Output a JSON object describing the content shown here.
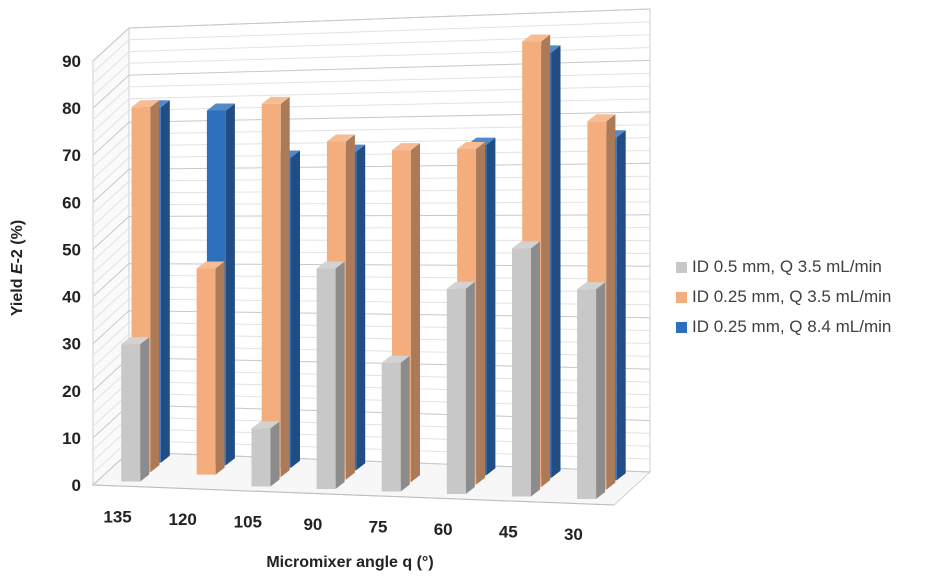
{
  "chart_data": {
    "type": "bar",
    "variant": "3d-clustered-depth",
    "xlabel": "Micromixer angle q  (°)",
    "ylabel": "Yield E-2 (%)",
    "ylabel_italic_part": "E",
    "ylim": [
      0,
      90
    ],
    "ytick_step": 10,
    "grid": true,
    "legend_position": "right",
    "categories": [
      "135",
      "120",
      "105",
      "90",
      "75",
      "60",
      "45",
      "30"
    ],
    "series": [
      {
        "name": "ID 0.5 mm, Q 3.5 mL/min",
        "color": "#c8c8c8",
        "values": [
          29,
          0,
          12,
          45,
          26,
          41,
          49,
          41
        ]
      },
      {
        "name": "ID 0.25 mm, Q 3.5 mL/min",
        "color": "#f4ae7e",
        "values": [
          77,
          43,
          77,
          69,
          67,
          67,
          88,
          72
        ]
      },
      {
        "name": "ID 0.25 mm, Q 8.4 mL/min",
        "color": "#2e6fbd",
        "values": [
          75,
          74,
          64,
          65,
          0,
          66,
          84,
          67
        ]
      }
    ]
  }
}
